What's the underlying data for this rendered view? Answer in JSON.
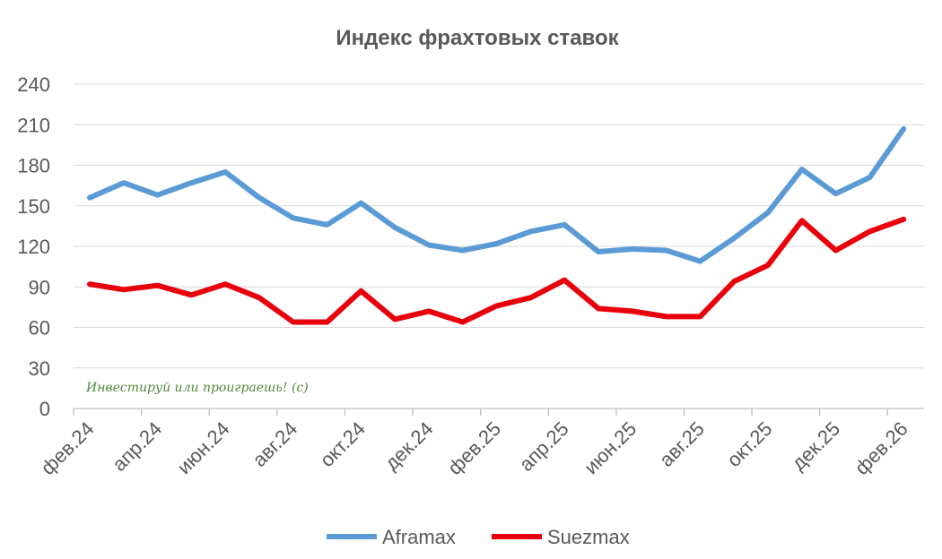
{
  "chart_data": {
    "type": "line",
    "title": "Индекс фрахтовых ставок",
    "xlabel": "",
    "ylabel": "",
    "ylim": [
      0,
      240
    ],
    "yticks": [
      0,
      30,
      60,
      90,
      120,
      150,
      180,
      210,
      240
    ],
    "grid": true,
    "legend_position": "bottom",
    "x": [
      "фев.24",
      "мар.24",
      "апр.24",
      "май.24",
      "июн.24",
      "июл.24",
      "авг.24",
      "сен.24",
      "окт.24",
      "ноя.24",
      "дек.24",
      "янв.25",
      "фев.25",
      "мар.25",
      "апр.25",
      "май.25",
      "июн.25",
      "июл.25",
      "авг.25",
      "сен.25",
      "окт.25",
      "ноя.25",
      "дек.25",
      "янв.26",
      "фев.26"
    ],
    "tick_labels": [
      "фев.24",
      "апр.24",
      "июн.24",
      "авг.24",
      "окт.24",
      "дек.24",
      "фев.25",
      "апр.25",
      "июн.25",
      "авг.25",
      "окт.25",
      "дек.25",
      "фев.26"
    ],
    "series": [
      {
        "name": "Aframax",
        "color": "#5b9bd5",
        "values": [
          156,
          167,
          158,
          167,
          175,
          156,
          141,
          136,
          152,
          134,
          121,
          117,
          122,
          131,
          136,
          116,
          118,
          117,
          109,
          126,
          145,
          177,
          159,
          171,
          207
        ]
      },
      {
        "name": "Suezmax",
        "color": "#e8000b",
        "values": [
          92,
          88,
          91,
          84,
          92,
          82,
          64,
          64,
          87,
          66,
          72,
          64,
          76,
          82,
          95,
          74,
          72,
          68,
          68,
          94,
          106,
          139,
          117,
          131,
          140
        ]
      }
    ],
    "annotation": "Инвестируй или проиграешь! (с)"
  }
}
